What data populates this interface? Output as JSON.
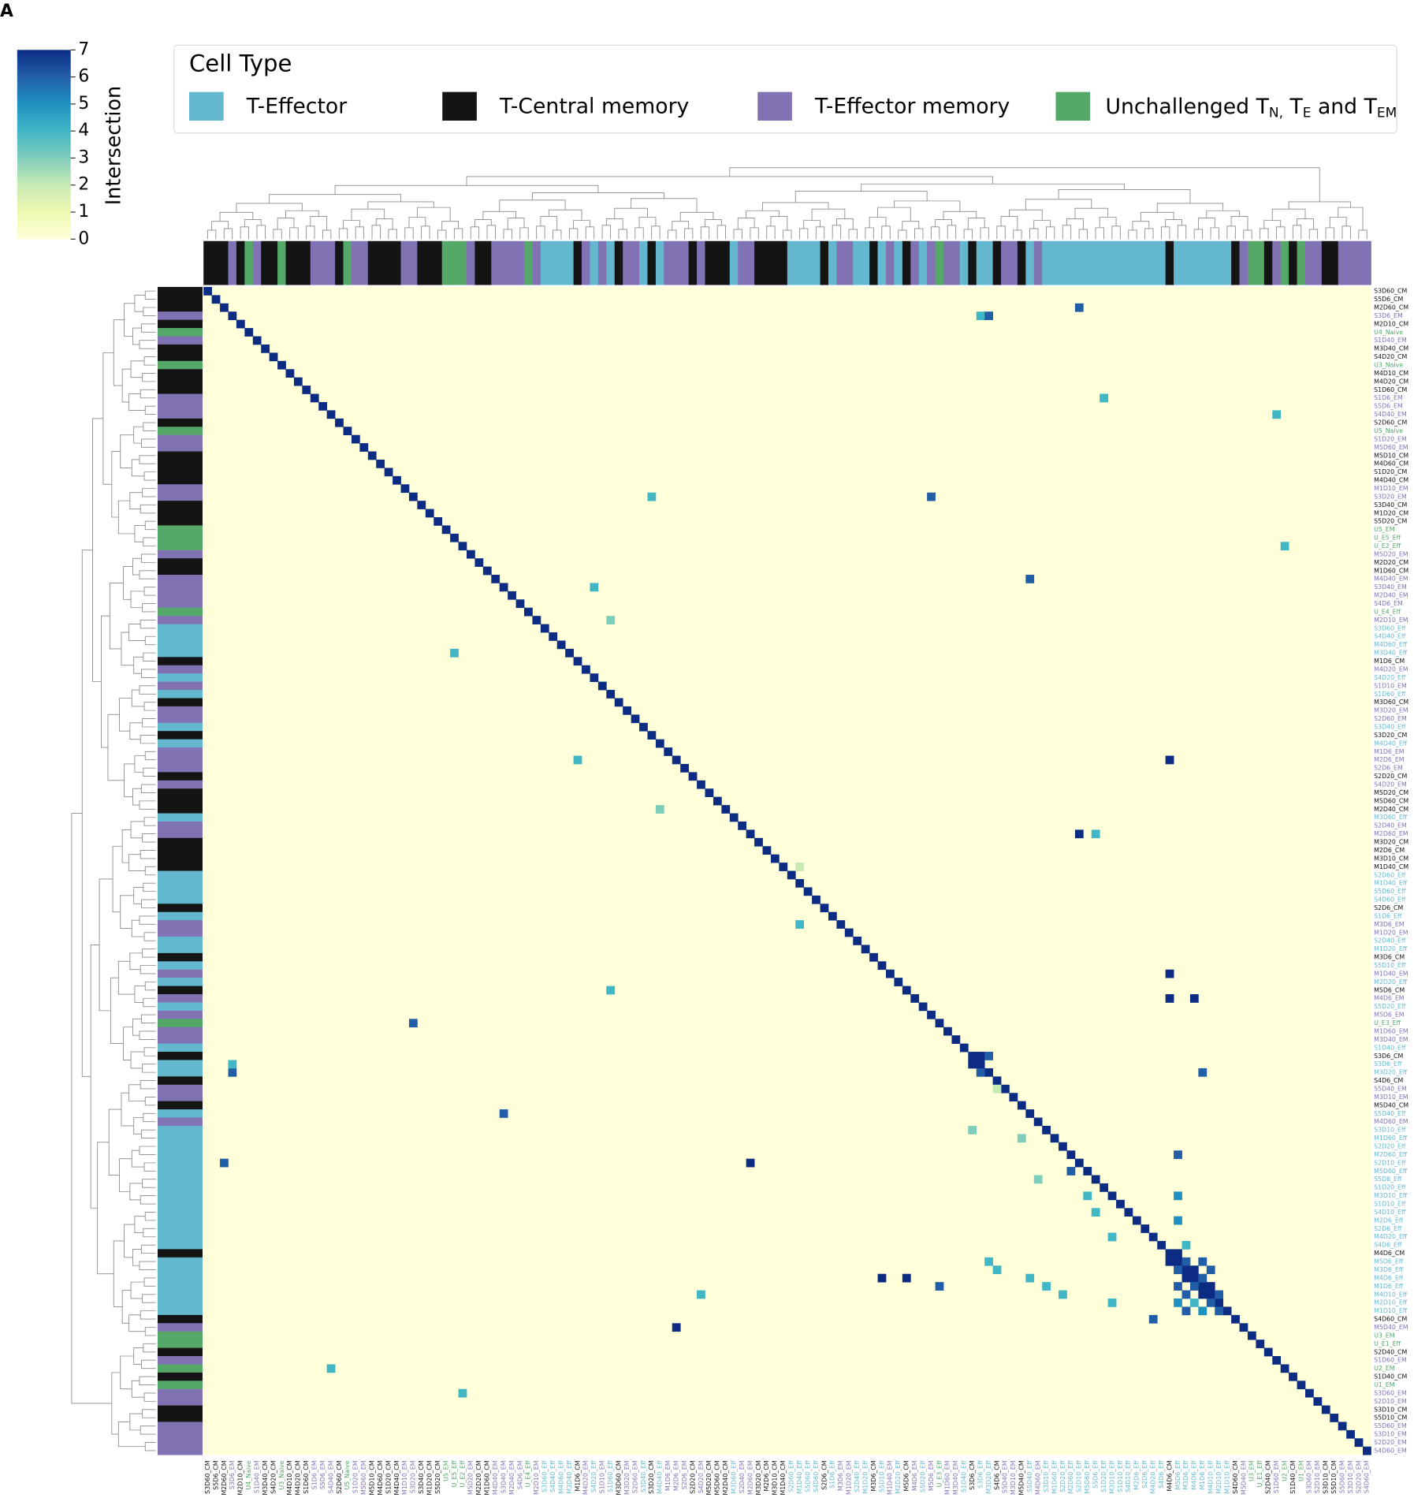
{
  "chart_data": {
    "type": "heatmap",
    "panel_label": "A",
    "colorbar_label": "Intersection",
    "zlim": [
      0,
      7
    ],
    "zticks": [
      0,
      1,
      2,
      3,
      4,
      5,
      6,
      7
    ],
    "colorscale": [
      "#ffffd9",
      "#edf8b1",
      "#c7e9b4",
      "#7fcdbb",
      "#41b6c4",
      "#1d91c0",
      "#225ea8",
      "#0c2c84"
    ],
    "legend_title": "Cell Type",
    "legend": [
      {
        "label": "T-Effector",
        "color": "#63b8cf"
      },
      {
        "label": "T-Central memory",
        "color": "#141414"
      },
      {
        "label": "T-Effector memory",
        "color": "#8172b3"
      },
      {
        "label_parts": [
          "Unchallenged T",
          "N,",
          " T",
          "E",
          " and T",
          "EM"
        ],
        "color": "#55a868"
      }
    ],
    "labels": [
      "S3D60_CM",
      "S5D6_CM",
      "M2D60_CM",
      "S3D6_EM",
      "M2D10_CM",
      "U4_Naive",
      "S1D40_EM",
      "M3D40_CM",
      "S4D20_CM",
      "U3_Naive",
      "M4D10_CM",
      "M4D20_CM",
      "S1D60_CM",
      "S1D6_EM",
      "S5D6_EM",
      "S4D40_EM",
      "S2D60_CM",
      "U5_Naive",
      "S1D20_EM",
      "M5D60_EM",
      "M5D10_CM",
      "M4D60_CM",
      "S1D20_CM",
      "M4D40_CM",
      "M1D10_EM",
      "S3D20_EM",
      "S3D40_CM",
      "M1D20_CM",
      "S5D20_CM",
      "U5_EM",
      "U_E5_Eff",
      "U_E2_Eff",
      "M5D20_EM",
      "M2D20_CM",
      "M1D60_CM",
      "M4D40_EM",
      "S3D40_EM",
      "M2D40_EM",
      "S4D6_EM",
      "U_E4_Eff",
      "M2D10_EM",
      "S3D60_Eff",
      "S4D40_Eff",
      "M4D60_Eff",
      "M3D40_Eff",
      "M1D6_CM",
      "M4D20_EM",
      "S4D20_Eff",
      "S1D10_EM",
      "S1D60_Eff",
      "M3D60_CM",
      "M3D20_EM",
      "S2D60_EM",
      "S3D40_Eff",
      "S3D20_CM",
      "M4D40_Eff",
      "M1D6_EM",
      "M2D6_EM",
      "S2D6_EM",
      "S2D20_CM",
      "S4D20_EM",
      "M5D20_CM",
      "M5D60_CM",
      "M2D40_CM",
      "M3D60_Eff",
      "S2D40_EM",
      "M2D60_EM",
      "M3D20_CM",
      "M2D6_CM",
      "M3D10_CM",
      "M1D40_CM",
      "S2D60_Eff",
      "M1D40_Eff",
      "S5D60_Eff",
      "S4D60_Eff",
      "S2D6_CM",
      "S1D6_Eff",
      "M3D6_EM",
      "M1D20_EM",
      "S2D40_Eff",
      "M1D20_Eff",
      "M3D6_CM",
      "S5D10_Eff",
      "M1D40_EM",
      "M2D20_Eff",
      "M5D6_CM",
      "M4D6_EM",
      "S5D20_Eff",
      "M5D6_EM",
      "U_E3_Eff",
      "M1D60_EM",
      "M3D40_EM",
      "S1D40_Eff",
      "S3D6_CM",
      "S3D6_Eff",
      "M3D20_Eff",
      "S4D6_CM",
      "S5D40_EM",
      "M3D10_EM",
      "M5D40_CM",
      "S5D40_Eff",
      "M4D60_EM",
      "S3D10_Eff",
      "M1D60_Eff",
      "S2D20_Eff",
      "M2D60_Eff",
      "S2D10_Eff",
      "M5D60_Eff",
      "S5D6_Eff",
      "S1D20_Eff",
      "M3D10_Eff",
      "S1D10_Eff",
      "S4D10_Eff",
      "M2D6_Eff",
      "S2D6_Eff",
      "M4D20_Eff",
      "S4D6_Eff",
      "M4D6_CM",
      "M5D6_Eff",
      "M3D6_Eff",
      "M4D6_Eff",
      "M1D6_Eff",
      "M4D10_Eff",
      "M2D10_Eff",
      "M1D10_Eff",
      "S4D60_CM",
      "M5D40_EM",
      "U3_EM",
      "U_E1_Eff",
      "S2D40_CM",
      "S1D60_EM",
      "U2_EM",
      "S1D40_CM",
      "U1_EM",
      "S3D60_EM",
      "S2D10_EM",
      "S3D10_CM",
      "S5D10_CM",
      "S5D60_EM",
      "S3D10_EM",
      "S2D20_EM",
      "S4D60_EM"
    ],
    "cells": [
      [
        3,
        94,
        4
      ],
      [
        3,
        95,
        6
      ],
      [
        2,
        106,
        6
      ],
      [
        13,
        109,
        4
      ],
      [
        15,
        130,
        4
      ],
      [
        25,
        88,
        6
      ],
      [
        25,
        54,
        4
      ],
      [
        35,
        100,
        6
      ],
      [
        31,
        131,
        4
      ],
      [
        57,
        117,
        7
      ],
      [
        66,
        106,
        7
      ],
      [
        66,
        108,
        4
      ],
      [
        93,
        94,
        7
      ],
      [
        94,
        93,
        7
      ],
      [
        93,
        95,
        6
      ],
      [
        95,
        94,
        6
      ],
      [
        89,
        25,
        6
      ],
      [
        100,
        36,
        6
      ],
      [
        106,
        2,
        6
      ],
      [
        95,
        3,
        6
      ],
      [
        94,
        3,
        4
      ],
      [
        126,
        57,
        7
      ],
      [
        106,
        66,
        7
      ],
      [
        83,
        117,
        7
      ],
      [
        86,
        117,
        7
      ],
      [
        86,
        120,
        7
      ],
      [
        95,
        121,
        6
      ],
      [
        120,
        82,
        7
      ],
      [
        120,
        85,
        7
      ],
      [
        121,
        89,
        6
      ],
      [
        125,
        115,
        6
      ],
      [
        117,
        118,
        7
      ],
      [
        118,
        117,
        7
      ],
      [
        118,
        119,
        6
      ],
      [
        119,
        118,
        6
      ],
      [
        119,
        120,
        7
      ],
      [
        120,
        119,
        7
      ],
      [
        120,
        121,
        6
      ],
      [
        121,
        120,
        6
      ],
      [
        121,
        122,
        7
      ],
      [
        122,
        121,
        7
      ],
      [
        122,
        123,
        6
      ],
      [
        123,
        122,
        6
      ],
      [
        118,
        121,
        6
      ],
      [
        121,
        118,
        6
      ],
      [
        119,
        122,
        6
      ],
      [
        122,
        119,
        6
      ],
      [
        123,
        118,
        5
      ],
      [
        124,
        119,
        6
      ],
      [
        123,
        120,
        4
      ],
      [
        124,
        121,
        5
      ],
      [
        124,
        123,
        6
      ],
      [
        107,
        105,
        6
      ],
      [
        110,
        107,
        4
      ],
      [
        112,
        108,
        4
      ],
      [
        115,
        110,
        4
      ],
      [
        105,
        118,
        6
      ],
      [
        110,
        118,
        5
      ],
      [
        113,
        118,
        5
      ],
      [
        116,
        119,
        4
      ],
      [
        108,
        101,
        3
      ],
      [
        103,
        99,
        3
      ],
      [
        97,
        96,
        2
      ],
      [
        70,
        72,
        2
      ],
      [
        120,
        100,
        4
      ],
      [
        121,
        102,
        4
      ],
      [
        118,
        95,
        4
      ],
      [
        119,
        96,
        4
      ],
      [
        122,
        104,
        4
      ],
      [
        123,
        110,
        4
      ],
      [
        36,
        47,
        4
      ],
      [
        57,
        45,
        4
      ],
      [
        44,
        30,
        4
      ],
      [
        40,
        49,
        3
      ],
      [
        63,
        55,
        3
      ],
      [
        77,
        72,
        4
      ],
      [
        85,
        49,
        4
      ],
      [
        102,
        93,
        3
      ],
      [
        122,
        60,
        4
      ],
      [
        131,
        15,
        4
      ],
      [
        134,
        31,
        4
      ]
    ]
  }
}
